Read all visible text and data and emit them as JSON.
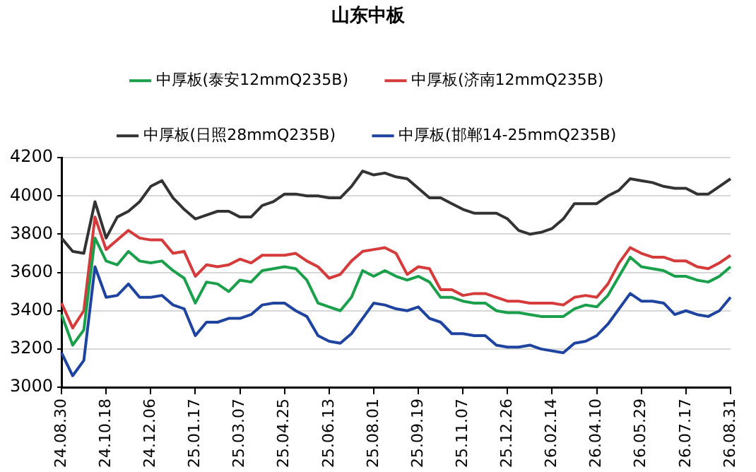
{
  "chart_data": {
    "type": "line",
    "title": "山东中板",
    "categories": [
      "24.08.30",
      null,
      null,
      null,
      "24.10.18",
      null,
      null,
      null,
      "24.12.06",
      null,
      null,
      null,
      "25.01.17",
      null,
      null,
      null,
      "25.03.07",
      null,
      null,
      null,
      "25.04.25",
      null,
      null,
      null,
      "25.06.13",
      null,
      null,
      null,
      "25.08.01",
      null,
      null,
      null,
      "25.09.19",
      null,
      null,
      null,
      "25.11.07",
      null,
      null,
      null,
      "25.12.26",
      null,
      null,
      null,
      "26.02.14",
      null,
      null,
      null,
      "26.04.10",
      null,
      null,
      null,
      "26.05.29",
      null,
      null,
      null,
      "26.07.17",
      null,
      null,
      null,
      "26.08.31"
    ],
    "series": [
      {
        "name": "中厚板(泰安12mmQ235B)",
        "color": "#1aa04a",
        "values": [
          3380,
          3220,
          3300,
          3780,
          3660,
          3640,
          3710,
          3660,
          3650,
          3660,
          3610,
          3570,
          3440,
          3550,
          3540,
          3500,
          3560,
          3550,
          3610,
          3620,
          3630,
          3620,
          3560,
          3440,
          3420,
          3400,
          3470,
          3610,
          3580,
          3610,
          3580,
          3560,
          3580,
          3550,
          3470,
          3470,
          3450,
          3440,
          3440,
          3400,
          3390,
          3390,
          3380,
          3370,
          3370,
          3370,
          3410,
          3430,
          3420,
          3480,
          3580,
          3680,
          3630,
          3620,
          3610,
          3580,
          3580,
          3560,
          3550,
          3580,
          3630
        ]
      },
      {
        "name": "中厚板(济南12mmQ235B)",
        "color": "#d63b3b",
        "values": [
          3440,
          3310,
          3400,
          3890,
          3720,
          3770,
          3820,
          3780,
          3770,
          3770,
          3700,
          3710,
          3580,
          3640,
          3630,
          3640,
          3670,
          3650,
          3690,
          3690,
          3690,
          3700,
          3660,
          3630,
          3570,
          3590,
          3660,
          3710,
          3720,
          3730,
          3700,
          3590,
          3630,
          3620,
          3510,
          3510,
          3480,
          3490,
          3490,
          3470,
          3450,
          3450,
          3440,
          3440,
          3440,
          3430,
          3470,
          3480,
          3470,
          3540,
          3650,
          3730,
          3700,
          3680,
          3680,
          3660,
          3660,
          3630,
          3620,
          3650,
          3690
        ]
      },
      {
        "name": "中厚板(日照28mmQ235B)",
        "color": "#333333",
        "values": [
          3780,
          3710,
          3700,
          3970,
          3780,
          3890,
          3920,
          3970,
          4050,
          4080,
          3990,
          3930,
          3880,
          3900,
          3920,
          3920,
          3890,
          3890,
          3950,
          3970,
          4010,
          4010,
          4000,
          4000,
          3990,
          3990,
          4050,
          4130,
          4110,
          4120,
          4100,
          4090,
          4040,
          3990,
          3990,
          3960,
          3930,
          3910,
          3910,
          3910,
          3880,
          3820,
          3800,
          3810,
          3830,
          3880,
          3960,
          3960,
          3960,
          4000,
          4030,
          4090,
          4080,
          4070,
          4050,
          4040,
          4040,
          4010,
          4010,
          4050,
          4090
        ]
      },
      {
        "name": "中厚板(邯郸14-25mmQ235B)",
        "color": "#1e44a0",
        "values": [
          3180,
          3060,
          3140,
          3630,
          3470,
          3480,
          3540,
          3470,
          3470,
          3480,
          3430,
          3410,
          3270,
          3340,
          3340,
          3360,
          3360,
          3380,
          3430,
          3440,
          3440,
          3400,
          3370,
          3270,
          3240,
          3230,
          3280,
          3360,
          3440,
          3430,
          3410,
          3400,
          3420,
          3360,
          3340,
          3280,
          3280,
          3270,
          3270,
          3220,
          3210,
          3210,
          3220,
          3200,
          3190,
          3180,
          3230,
          3240,
          3270,
          3330,
          3410,
          3490,
          3450,
          3450,
          3440,
          3380,
          3400,
          3380,
          3370,
          3400,
          3470
        ]
      }
    ],
    "ylim": [
      3000,
      4200
    ],
    "yticks": [
      3000,
      3200,
      3400,
      3600,
      3800,
      4000,
      4200
    ],
    "grid": "y",
    "legend": "top",
    "marker": "none",
    "line_style": "solid"
  }
}
